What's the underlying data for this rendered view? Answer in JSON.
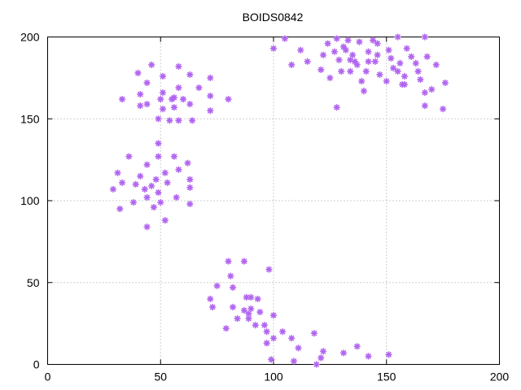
{
  "chart_data": {
    "type": "scatter",
    "title": "BOIDS0842",
    "xlabel": "",
    "ylabel": "",
    "xlim": [
      0,
      200
    ],
    "ylim": [
      0,
      200
    ],
    "xticks": [
      0,
      50,
      100,
      150,
      200
    ],
    "yticks": [
      0,
      50,
      100,
      150,
      200
    ],
    "grid": true,
    "marker": "asterisk",
    "color": "#b266f0",
    "points": [
      [
        33,
        162
      ],
      [
        40,
        178
      ],
      [
        41,
        158
      ],
      [
        41,
        165
      ],
      [
        44,
        172
      ],
      [
        44,
        159
      ],
      [
        46,
        183
      ],
      [
        49,
        150
      ],
      [
        50,
        162
      ],
      [
        51,
        166
      ],
      [
        51,
        176
      ],
      [
        51,
        156
      ],
      [
        54,
        149
      ],
      [
        55,
        162
      ],
      [
        56,
        163
      ],
      [
        56,
        157
      ],
      [
        58,
        169
      ],
      [
        58,
        182
      ],
      [
        58,
        149
      ],
      [
        60,
        162
      ],
      [
        63,
        177
      ],
      [
        63,
        159
      ],
      [
        64,
        149
      ],
      [
        67,
        169
      ],
      [
        72,
        175
      ],
      [
        72,
        164
      ],
      [
        72,
        155
      ],
      [
        80,
        162
      ],
      [
        29,
        107
      ],
      [
        31,
        117
      ],
      [
        32,
        95
      ],
      [
        33,
        111
      ],
      [
        36,
        127
      ],
      [
        38,
        99
      ],
      [
        39,
        110
      ],
      [
        41,
        115
      ],
      [
        43,
        107
      ],
      [
        44,
        84
      ],
      [
        44,
        102
      ],
      [
        44,
        122
      ],
      [
        46,
        109
      ],
      [
        47,
        96
      ],
      [
        48,
        113
      ],
      [
        49,
        127
      ],
      [
        49,
        135
      ],
      [
        49,
        105
      ],
      [
        50,
        99
      ],
      [
        52,
        117
      ],
      [
        52,
        88
      ],
      [
        53,
        111
      ],
      [
        56,
        127
      ],
      [
        57,
        102
      ],
      [
        58,
        119
      ],
      [
        62,
        123
      ],
      [
        63,
        113
      ],
      [
        63,
        108
      ],
      [
        63,
        98
      ],
      [
        72,
        40
      ],
      [
        73,
        35
      ],
      [
        75,
        48
      ],
      [
        79,
        22
      ],
      [
        80,
        63
      ],
      [
        81,
        54
      ],
      [
        82,
        47
      ],
      [
        82,
        35
      ],
      [
        84,
        28
      ],
      [
        87,
        33
      ],
      [
        87,
        63
      ],
      [
        88,
        41
      ],
      [
        89,
        31
      ],
      [
        89,
        28
      ],
      [
        90,
        41
      ],
      [
        90,
        34
      ],
      [
        92,
        24
      ],
      [
        93,
        40
      ],
      [
        94,
        32
      ],
      [
        96,
        24
      ],
      [
        97,
        20
      ],
      [
        97,
        13
      ],
      [
        98,
        58
      ],
      [
        99,
        3
      ],
      [
        100,
        16
      ],
      [
        100,
        30
      ],
      [
        104,
        20
      ],
      [
        108,
        16
      ],
      [
        109,
        2
      ],
      [
        111,
        10
      ],
      [
        118,
        19
      ],
      [
        119,
        0
      ],
      [
        121,
        4
      ],
      [
        122,
        8
      ],
      [
        131,
        7
      ],
      [
        137,
        11
      ],
      [
        142,
        5
      ],
      [
        151,
        6
      ],
      [
        100,
        193
      ],
      [
        105,
        199
      ],
      [
        108,
        183
      ],
      [
        112,
        192
      ],
      [
        115,
        185
      ],
      [
        121,
        180
      ],
      [
        122,
        189
      ],
      [
        124,
        196
      ],
      [
        125,
        175
      ],
      [
        127,
        191
      ],
      [
        128,
        157
      ],
      [
        128,
        199
      ],
      [
        129,
        186
      ],
      [
        130,
        179
      ],
      [
        131,
        194
      ],
      [
        132,
        192
      ],
      [
        133,
        198
      ],
      [
        134,
        186
      ],
      [
        134,
        179
      ],
      [
        135,
        189
      ],
      [
        136,
        185
      ],
      [
        137,
        183
      ],
      [
        138,
        197
      ],
      [
        139,
        173
      ],
      [
        140,
        167
      ],
      [
        141,
        179
      ],
      [
        142,
        191
      ],
      [
        142,
        185
      ],
      [
        144,
        198
      ],
      [
        145,
        185
      ],
      [
        146,
        196
      ],
      [
        146,
        189
      ],
      [
        147,
        177
      ],
      [
        150,
        173
      ],
      [
        151,
        192
      ],
      [
        152,
        187
      ],
      [
        153,
        181
      ],
      [
        155,
        200
      ],
      [
        155,
        179
      ],
      [
        156,
        184
      ],
      [
        157,
        171
      ],
      [
        158,
        176
      ],
      [
        158,
        171
      ],
      [
        159,
        193
      ],
      [
        161,
        188
      ],
      [
        163,
        184
      ],
      [
        164,
        179
      ],
      [
        165,
        174
      ],
      [
        167,
        200
      ],
      [
        167,
        166
      ],
      [
        167,
        158
      ],
      [
        168,
        188
      ],
      [
        170,
        168
      ],
      [
        172,
        183
      ],
      [
        175,
        156
      ],
      [
        176,
        172
      ]
    ]
  }
}
